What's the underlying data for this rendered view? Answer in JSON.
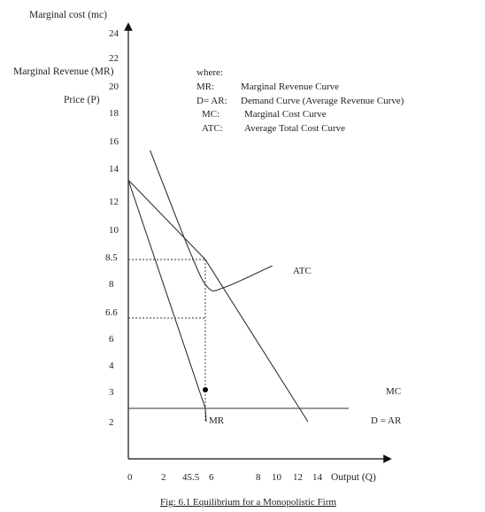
{
  "chart_data": {
    "type": "line",
    "title": "",
    "ylabel_lines": [
      "Marginal cost (mc)",
      "Marginal Revenue (MR)",
      "Price (P)"
    ],
    "xlabel": "Output (Q)",
    "y_ticks": [
      "24",
      "22",
      "20",
      "18",
      "16",
      "14",
      "12",
      "10",
      "8.5",
      "8",
      "6.6",
      "6",
      "4",
      "3",
      "2"
    ],
    "x_ticks": [
      "0",
      "2",
      "45.5",
      "6",
      "8",
      "10",
      "12",
      "14"
    ],
    "legend": {
      "header": "where:",
      "entries": [
        {
          "key": "MR:",
          "desc": "Marginal Revenue Curve"
        },
        {
          "key": "D= AR:",
          "desc": "Demand Curve (Average Revenue Curve)"
        },
        {
          "key": "MC:",
          "desc": "Marginal Cost Curve"
        },
        {
          "key": "ATC:",
          "desc": "Average Total Cost Curve"
        }
      ]
    },
    "series": [
      {
        "name": "MR",
        "label": "MR",
        "points": [
          [
            0,
            13.3
          ],
          [
            4.5,
            2.6
          ],
          [
            4.7,
            2.0
          ]
        ]
      },
      {
        "name": "D = AR",
        "label": "D = AR",
        "points": [
          [
            0,
            13.3
          ],
          [
            4.5,
            8.5
          ],
          [
            12.9,
            2.0
          ]
        ]
      },
      {
        "name": "MC",
        "label": "MC",
        "points": [
          [
            0,
            2.6
          ],
          [
            16.0,
            2.6
          ]
        ]
      },
      {
        "name": "ATC",
        "label": "ATC",
        "points": [
          [
            1.2,
            15.3
          ],
          [
            3.5,
            9.0
          ],
          [
            5.0,
            7.6
          ],
          [
            6.5,
            7.6
          ],
          [
            9.3,
            8.3
          ]
        ]
      }
    ],
    "reference_lines": [
      {
        "from": [
          0,
          8.5
        ],
        "to": [
          4.5,
          8.5
        ]
      },
      {
        "from": [
          0,
          6.6
        ],
        "to": [
          4.5,
          6.6
        ]
      },
      {
        "from": [
          4.5,
          8.5
        ],
        "to": [
          4.5,
          2.0
        ]
      }
    ],
    "marker": {
      "x": 4.5,
      "y": 3.0
    }
  },
  "caption": "Fig: 6.1 Equilibrium for a Monopolistic Firm"
}
